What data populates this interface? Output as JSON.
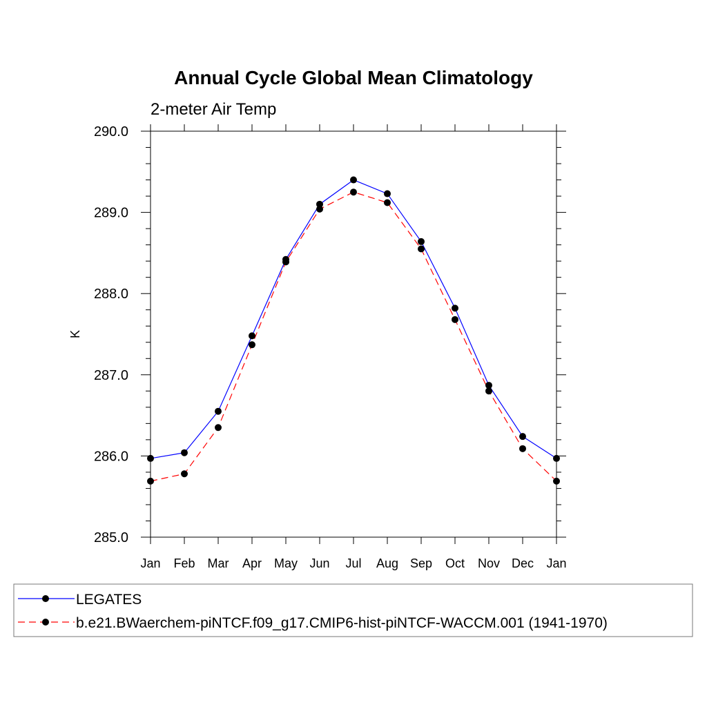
{
  "chart_data": {
    "type": "line",
    "title": "Annual Cycle Global Mean Climatology",
    "subtitle": "2-meter Air Temp",
    "xlabel": "",
    "ylabel": "K",
    "categories": [
      "Jan",
      "Feb",
      "Mar",
      "Apr",
      "May",
      "Jun",
      "Jul",
      "Aug",
      "Sep",
      "Oct",
      "Nov",
      "Dec",
      "Jan"
    ],
    "ylim": [
      285.0,
      290.0
    ],
    "yticks": [
      "285.0",
      "286.0",
      "287.0",
      "288.0",
      "289.0",
      "290.0"
    ],
    "series": [
      {
        "name": "LEGATES",
        "color": "#0000ff",
        "dash": "solid",
        "values": [
          285.97,
          286.04,
          286.55,
          287.48,
          288.42,
          289.1,
          289.4,
          289.23,
          288.64,
          287.82,
          286.87,
          286.24,
          285.97
        ]
      },
      {
        "name": "b.e21.BWaerchem-piNTCF.f09_g17.CMIP6-hist-piNTCF-WACCM.001 (1941-1970)",
        "color": "#ff0000",
        "dash": "dashed",
        "values": [
          285.69,
          285.78,
          286.35,
          287.37,
          288.39,
          289.04,
          289.25,
          289.12,
          288.55,
          287.68,
          286.8,
          286.09,
          285.69
        ]
      }
    ],
    "legend": "bottom"
  }
}
